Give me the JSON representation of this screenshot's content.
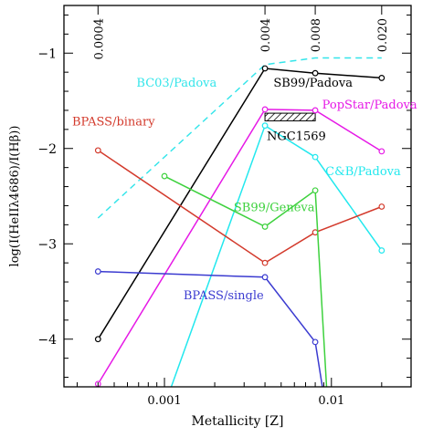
{
  "chart_data": {
    "type": "line",
    "xlabel": "Metallicity [Z]",
    "ylabel": "log(I(HeIIλ4686)/I(Hβ))",
    "xscale": "log",
    "xlim": [
      0.00025,
      0.03
    ],
    "ylim": [
      -4.5,
      -0.5
    ],
    "x_ticks": [
      {
        "value": 0.001,
        "label": "0.001"
      },
      {
        "value": 0.01,
        "label": "0.01"
      }
    ],
    "y_ticks": [
      {
        "value": -1,
        "label": "−1"
      },
      {
        "value": -2,
        "label": "−2"
      },
      {
        "value": -3,
        "label": "−3"
      },
      {
        "value": -4,
        "label": "−4"
      }
    ],
    "top_ticks": [
      {
        "value": 0.0004,
        "label": "0.0004"
      },
      {
        "value": 0.004,
        "label": "0.004"
      },
      {
        "value": 0.008,
        "label": "0.008"
      },
      {
        "value": 0.02,
        "label": "0.020"
      }
    ],
    "grid": false,
    "series": [
      {
        "name": "BC03/Padova",
        "color": "#33e5ea",
        "dashed": true,
        "markers": false,
        "x": [
          0.0004,
          0.004,
          0.008,
          0.02
        ],
        "y": [
          -2.73,
          -1.12,
          -1.05,
          -1.05
        ]
      },
      {
        "name": "SB99/Padova",
        "color": "#000000",
        "dashed": false,
        "markers": true,
        "x": [
          0.0004,
          0.004,
          0.008,
          0.02
        ],
        "y": [
          -4.0,
          -1.16,
          -1.21,
          -1.26
        ]
      },
      {
        "name": "PopStar/Padova",
        "color": "#e619e6",
        "dashed": false,
        "markers": true,
        "x": [
          0.0004,
          0.004,
          0.008,
          0.02
        ],
        "y": [
          -4.47,
          -1.59,
          -1.6,
          -2.03
        ]
      },
      {
        "name": "C&B/Padova",
        "color": "#22e8ee",
        "dashed": false,
        "markers": true,
        "x": [
          0.001,
          0.004,
          0.008,
          0.02
        ],
        "y": [
          -4.7,
          -1.76,
          -2.09,
          -3.07
        ]
      },
      {
        "name": "BPASS/binary",
        "color": "#d33a2c",
        "dashed": false,
        "markers": true,
        "x": [
          0.0004,
          0.004,
          0.008,
          0.02
        ],
        "y": [
          -2.02,
          -3.2,
          -2.88,
          -2.61
        ]
      },
      {
        "name": "SB99/Geneva",
        "color": "#3dd13d",
        "dashed": false,
        "markers": true,
        "x": [
          0.001,
          0.004,
          0.008,
          0.0095
        ],
        "y": [
          -2.29,
          -2.82,
          -2.44,
          -4.7
        ]
      },
      {
        "name": "BPASS/single",
        "color": "#3b3bd0",
        "dashed": false,
        "markers": true,
        "x": [
          0.0004,
          0.004,
          0.008,
          0.0092
        ],
        "y": [
          -3.29,
          -3.35,
          -4.03,
          -4.7
        ]
      }
    ],
    "annotations": [
      {
        "text": "BC03/Padova",
        "color": "#33e5ea",
        "x": 0.00068,
        "y": -1.35
      },
      {
        "text": "SB99/Padova",
        "color": "#000000",
        "x": 0.0045,
        "y": -1.35
      },
      {
        "text": "PopStar/Padova",
        "color": "#e619e6",
        "x": 0.0088,
        "y": -1.58
      },
      {
        "text": "BPASS/binary",
        "color": "#d33a2c",
        "x": 0.00028,
        "y": -1.76
      },
      {
        "text": "NGC1569",
        "color": "#000000",
        "x": 0.0041,
        "y": -1.91
      },
      {
        "text": "C&B/Padova",
        "color": "#22e8ee",
        "x": 0.0092,
        "y": -2.28
      },
      {
        "text": "SB99/Geneva",
        "color": "#3dd13d",
        "x": 0.0026,
        "y": -2.66
      },
      {
        "text": "BPASS/single",
        "color": "#3b3bd0",
        "x": 0.0013,
        "y": -3.58
      }
    ],
    "ngc1569_box": {
      "xmin": 0.004,
      "xmax": 0.008,
      "ymin": -1.71,
      "ymax": -1.63
    }
  }
}
